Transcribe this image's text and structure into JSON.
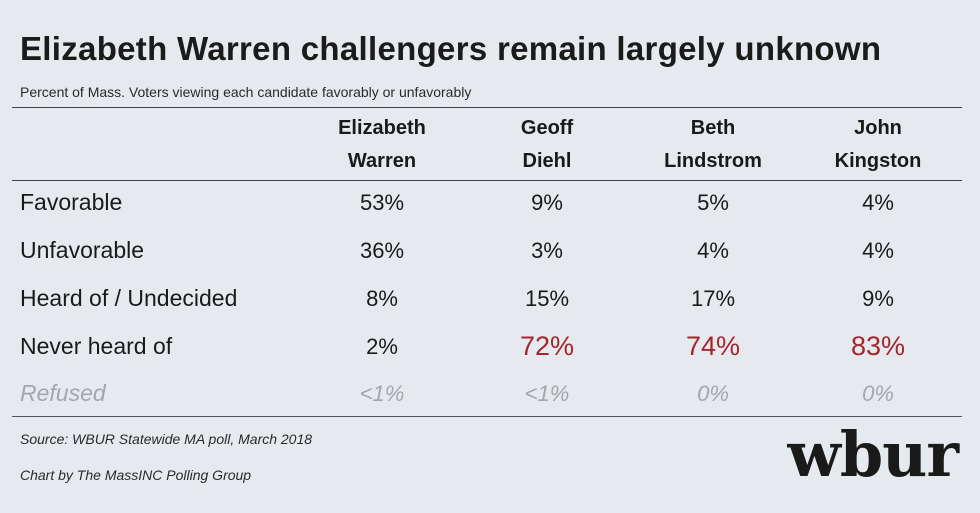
{
  "chart_data": {
    "type": "table",
    "title": "Elizabeth Warren challengers remain largely unknown",
    "subtitle": "Percent of Mass. Voters viewing each candidate favorably or unfavorably",
    "columns": [
      {
        "line1": "Elizabeth",
        "line2": "Warren"
      },
      {
        "line1": "Geoff",
        "line2": "Diehl"
      },
      {
        "line1": "Beth",
        "line2": "Lindstrom"
      },
      {
        "line1": "John",
        "line2": "Kingston"
      }
    ],
    "rows": [
      {
        "label": "Favorable",
        "values": [
          "53%",
          "9%",
          "5%",
          "4%"
        ]
      },
      {
        "label": "Unfavorable",
        "values": [
          "36%",
          "3%",
          "4%",
          "4%"
        ]
      },
      {
        "label": "Heard of / Undecided",
        "values": [
          "8%",
          "15%",
          "17%",
          "9%"
        ]
      },
      {
        "label": "Never heard of",
        "values": [
          "2%",
          "72%",
          "74%",
          "83%"
        ]
      },
      {
        "label": "Refused",
        "values": [
          "<1%",
          "<1%",
          "0%",
          "0%"
        ]
      }
    ],
    "highlight_color": "#a3262d",
    "muted_color": "#a3a6ab"
  },
  "footer": {
    "source": "Source: WBUR Statewide MA poll, March 2018",
    "credit": "Chart by The MassINC Polling Group",
    "logo": "wbur"
  }
}
